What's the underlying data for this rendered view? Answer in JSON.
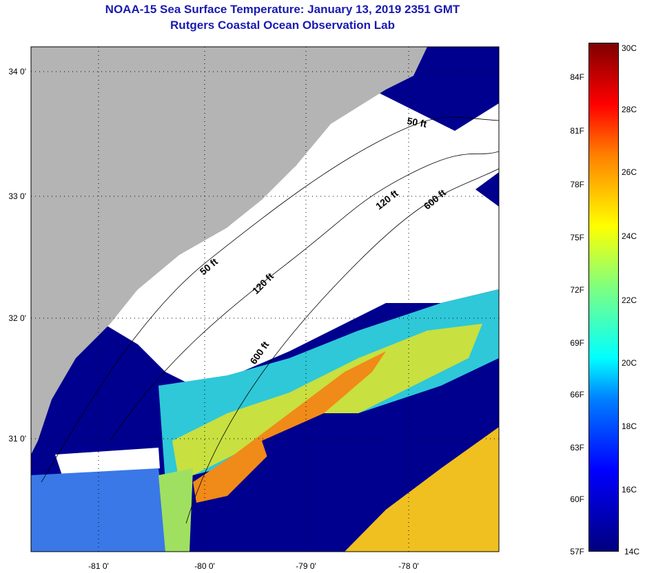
{
  "header": {
    "title": "NOAA-15 Sea Surface Temperature:  January 13, 2019 2351 GMT",
    "subtitle": "Rutgers Coastal Ocean Observation Lab"
  },
  "map": {
    "lat_labels": [
      "34 0'",
      "33 0'",
      "32 0'",
      "31 0'"
    ],
    "lon_labels": [
      "-81 0'",
      "-80 0'",
      "-79 0'",
      "-78 0'"
    ],
    "contour_labels": [
      "50 ft",
      "120 ft",
      "120 ft",
      "600 ft",
      "600 ft",
      "50 ft"
    ],
    "colors": {
      "land": "#b4b4b4",
      "cloud": "#ffffff",
      "cold_ocean": "#00008f"
    }
  },
  "colorbar": {
    "fahrenheit_labels": [
      "84F",
      "81F",
      "78F",
      "75F",
      "72F",
      "69F",
      "66F",
      "63F",
      "60F",
      "57F"
    ],
    "celsius_labels": [
      "30C",
      "28C",
      "26C",
      "24C",
      "22C",
      "20C",
      "18C",
      "16C",
      "14C"
    ],
    "range_c": [
      14,
      30
    ]
  }
}
